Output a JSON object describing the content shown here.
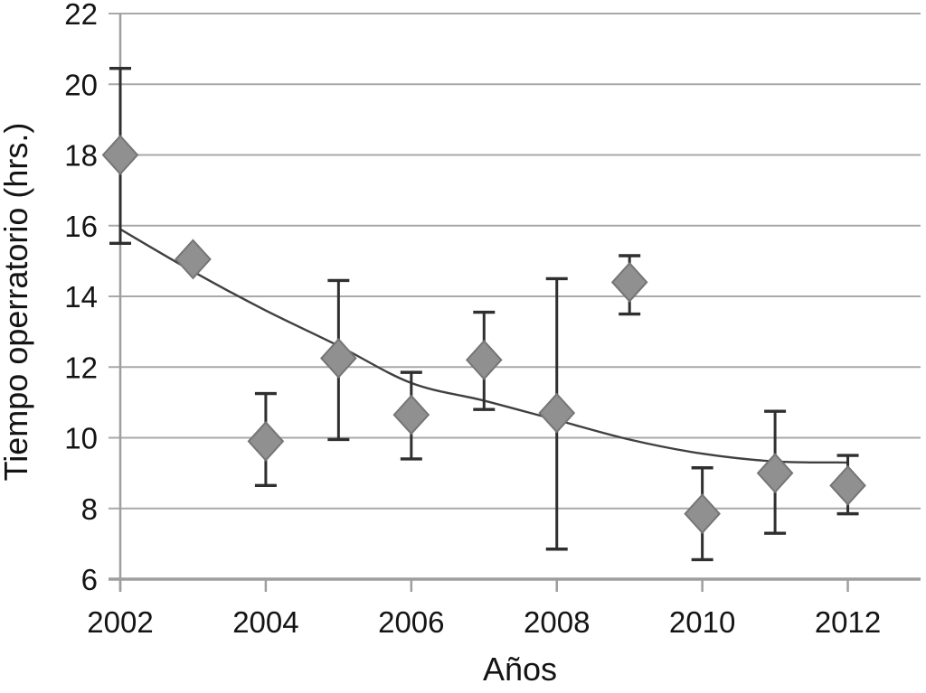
{
  "chart_data": {
    "type": "scatter",
    "xlabel": "Años",
    "ylabel": "Tiempo operratorio (hrs.)",
    "xlim": [
      2002,
      2013
    ],
    "ylim": [
      6,
      22
    ],
    "xticks": [
      2002,
      2004,
      2006,
      2008,
      2010,
      2012
    ],
    "yticks": [
      6,
      8,
      10,
      12,
      14,
      16,
      18,
      20,
      22
    ],
    "grid": "horizontal",
    "legend": "none",
    "scatter_series": {
      "marker": "diamond",
      "points": [
        {
          "x": 2002,
          "y": 18.0,
          "err_lo": 15.5,
          "err_hi": 20.45
        },
        {
          "x": 2003,
          "y": 15.05,
          "err_lo": null,
          "err_hi": null
        },
        {
          "x": 2004,
          "y": 9.9,
          "err_lo": 8.65,
          "err_hi": 11.25
        },
        {
          "x": 2005,
          "y": 12.25,
          "err_lo": 9.95,
          "err_hi": 14.45
        },
        {
          "x": 2006,
          "y": 10.65,
          "err_lo": 9.4,
          "err_hi": 11.85
        },
        {
          "x": 2007,
          "y": 12.2,
          "err_lo": 10.8,
          "err_hi": 13.55
        },
        {
          "x": 2008,
          "y": 10.7,
          "err_lo": 6.85,
          "err_hi": 14.5
        },
        {
          "x": 2009,
          "y": 14.4,
          "err_lo": 13.5,
          "err_hi": 15.15
        },
        {
          "x": 2010,
          "y": 7.85,
          "err_lo": 6.55,
          "err_hi": 9.15
        },
        {
          "x": 2011,
          "y": 9.0,
          "err_lo": 7.3,
          "err_hi": 10.75
        },
        {
          "x": 2012,
          "y": 8.65,
          "err_lo": 7.85,
          "err_hi": 9.5
        }
      ]
    },
    "trend_series": {
      "points": [
        {
          "x": 2002,
          "y": 15.9
        },
        {
          "x": 2003,
          "y": 14.7
        },
        {
          "x": 2004,
          "y": 13.6
        },
        {
          "x": 2005,
          "y": 12.6
        },
        {
          "x": 2006,
          "y": 11.55
        },
        {
          "x": 2007,
          "y": 11.05
        },
        {
          "x": 2008,
          "y": 10.5
        },
        {
          "x": 2009,
          "y": 9.95
        },
        {
          "x": 2010,
          "y": 9.55
        },
        {
          "x": 2011,
          "y": 9.33
        },
        {
          "x": 2012,
          "y": 9.3
        }
      ]
    },
    "colors": {
      "marker_fill": "#909090",
      "marker_stroke": "#757575",
      "error_bar": "#2f2f2f",
      "grid_line": "#a8a8a8",
      "axis_line": "#9e9e9e",
      "trend_line": "#404040",
      "text": "#141414",
      "background": "#ffffff"
    }
  }
}
